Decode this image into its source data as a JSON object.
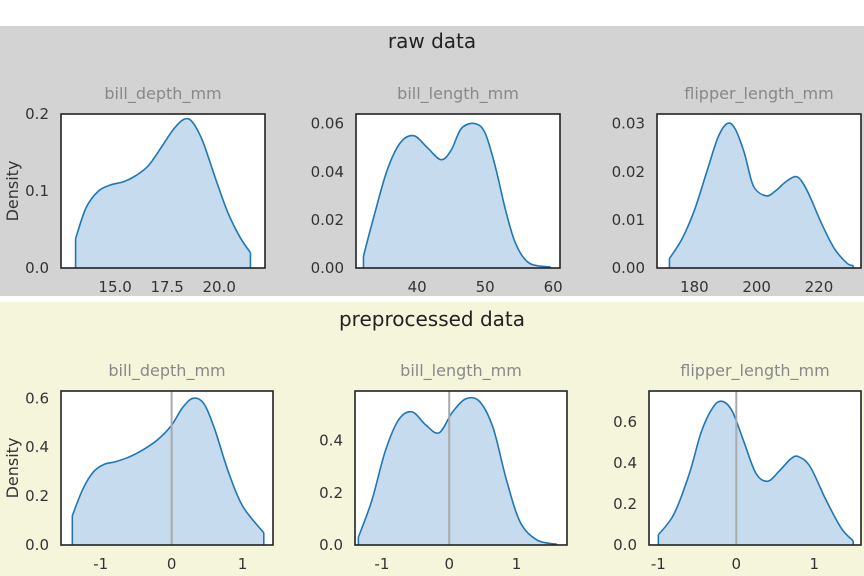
{
  "chart_data": [
    {
      "group": "raw data",
      "title": "bill_depth_mm",
      "type": "area",
      "ylabel": "Density",
      "xlim": [
        12.4,
        22.2
      ],
      "ylim": [
        0,
        0.2
      ],
      "xticks": [
        "15.0",
        "17.5",
        "20.0"
      ],
      "yticks": [
        "0.0",
        "0.1",
        "0.2"
      ],
      "x": [
        13.1,
        13.6,
        14.2,
        14.8,
        15.4,
        16.0,
        16.6,
        17.2,
        17.8,
        18.3,
        18.7,
        19.2,
        19.8,
        20.4,
        21.0,
        21.5
      ],
      "y": [
        0.038,
        0.078,
        0.1,
        0.108,
        0.112,
        0.12,
        0.133,
        0.156,
        0.18,
        0.193,
        0.19,
        0.165,
        0.118,
        0.073,
        0.04,
        0.02
      ],
      "baseline": null
    },
    {
      "group": "raw data",
      "title": "bill_length_mm",
      "type": "area",
      "ylabel": "",
      "xlim": [
        31,
        61
      ],
      "ylim": [
        0,
        0.064
      ],
      "xticks": [
        "40",
        "50",
        "60"
      ],
      "yticks": [
        "0.00",
        "0.02",
        "0.04",
        "0.06"
      ],
      "x": [
        32.1,
        33.5,
        35.5,
        37.5,
        39.5,
        41.5,
        43.5,
        45.0,
        46.5,
        48.5,
        50.0,
        51.5,
        53.0,
        54.5,
        56.5,
        59.6
      ],
      "y": [
        0.005,
        0.02,
        0.04,
        0.052,
        0.055,
        0.05,
        0.045,
        0.049,
        0.058,
        0.06,
        0.056,
        0.042,
        0.024,
        0.01,
        0.002,
        0.0004
      ],
      "baseline": null
    },
    {
      "group": "raw data",
      "title": "flipper_length_mm",
      "type": "area",
      "ylabel": "",
      "xlim": [
        168,
        233.5
      ],
      "ylim": [
        0,
        0.032
      ],
      "xticks": [
        "180",
        "200",
        "220"
      ],
      "yticks": [
        "0.00",
        "0.01",
        "0.02",
        "0.03"
      ],
      "x": [
        172,
        176,
        180,
        184,
        187.5,
        190.5,
        193,
        196,
        199,
        203,
        206,
        209.5,
        212.5,
        214.5,
        217,
        221,
        225,
        229,
        231
      ],
      "y": [
        0.002,
        0.006,
        0.012,
        0.02,
        0.027,
        0.03,
        0.029,
        0.024,
        0.017,
        0.015,
        0.016,
        0.018,
        0.019,
        0.018,
        0.015,
        0.009,
        0.004,
        0.001,
        0.0005
      ],
      "baseline": null
    },
    {
      "group": "preprocessed data",
      "title": "bill_depth_mm",
      "type": "area",
      "ylabel": "Density",
      "xlim": [
        -1.56,
        1.43
      ],
      "ylim": [
        0,
        0.63
      ],
      "xticks": [
        "-1",
        "0",
        "1"
      ],
      "yticks": [
        "0.0",
        "0.2",
        "0.4",
        "0.6"
      ],
      "x": [
        -1.4,
        -1.25,
        -1.1,
        -0.95,
        -0.8,
        -0.6,
        -0.4,
        -0.2,
        0.0,
        0.15,
        0.3,
        0.45,
        0.6,
        0.8,
        1.0,
        1.3
      ],
      "y": [
        0.12,
        0.23,
        0.3,
        0.33,
        0.34,
        0.36,
        0.39,
        0.43,
        0.49,
        0.56,
        0.6,
        0.58,
        0.48,
        0.3,
        0.16,
        0.05
      ],
      "baseline": 0
    },
    {
      "group": "preprocessed data",
      "title": "bill_length_mm",
      "type": "area",
      "ylabel": "",
      "xlim": [
        -1.4,
        1.75
      ],
      "ylim": [
        0,
        0.59
      ],
      "xticks": [
        "-1",
        "0",
        "1"
      ],
      "yticks": [
        "0.0",
        "0.2",
        "0.4"
      ],
      "x": [
        -1.35,
        -1.15,
        -0.95,
        -0.75,
        -0.55,
        -0.35,
        -0.15,
        0.05,
        0.25,
        0.45,
        0.65,
        0.85,
        1.05,
        1.3,
        1.6
      ],
      "y": [
        0.03,
        0.17,
        0.36,
        0.48,
        0.51,
        0.46,
        0.43,
        0.51,
        0.56,
        0.55,
        0.45,
        0.25,
        0.09,
        0.02,
        0.003
      ],
      "baseline": 0
    },
    {
      "group": "preprocessed data",
      "title": "flipper_length_mm",
      "type": "area",
      "ylabel": "",
      "xlim": [
        -1.12,
        1.6
      ],
      "ylim": [
        0,
        0.75
      ],
      "xticks": [
        "-1",
        "0",
        "1"
      ],
      "yticks": [
        "0.0",
        "0.2",
        "0.4",
        "0.6"
      ],
      "x": [
        -1.0,
        -0.8,
        -0.6,
        -0.45,
        -0.3,
        -0.18,
        -0.05,
        0.1,
        0.25,
        0.4,
        0.55,
        0.7,
        0.8,
        0.95,
        1.15,
        1.35,
        1.5
      ],
      "y": [
        0.05,
        0.15,
        0.35,
        0.55,
        0.67,
        0.7,
        0.65,
        0.5,
        0.35,
        0.31,
        0.36,
        0.42,
        0.43,
        0.38,
        0.22,
        0.08,
        0.02
      ],
      "baseline": 0
    }
  ],
  "figure": {
    "raw_title": "raw data",
    "pre_title": "preprocessed data",
    "band_colors": {
      "raw": "#d3d3d3",
      "pre": "#f5f5dc"
    },
    "line_color": "#1f77b4",
    "fill_color": "#c6dbee",
    "baseline_color": "#aaaaaa"
  }
}
